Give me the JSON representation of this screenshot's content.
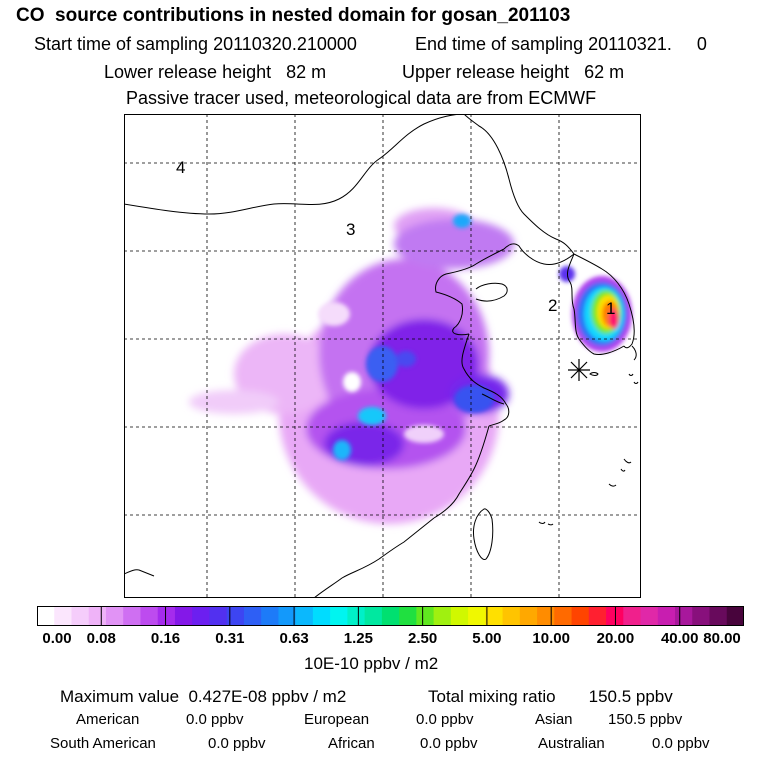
{
  "header": {
    "title": "CO  source contributions in nested domain for gosan_201103",
    "start_label": "Start time of sampling 20110320.210000",
    "end_label": "End time of sampling 20110321.     0",
    "lower_label": "Lower release height   82 m",
    "upper_label": "Upper release height   62 m",
    "note": "Passive tracer used, meteorological data are from ECMWF"
  },
  "chart_data": {
    "type": "heatmap",
    "title": "CO  source contributions in nested domain for gosan_201103",
    "region_labels": [
      "4",
      "3",
      "2",
      "1"
    ],
    "colorbar": {
      "ticks": [
        "0.00",
        "0.08",
        "0.16",
        "0.31",
        "0.63",
        "1.25",
        "2.50",
        "5.00",
        "10.00",
        "20.00",
        "40.00",
        "80.00"
      ],
      "units": "10E-10 ppbv / m2",
      "colors": [
        "#ffffff",
        "#fbe6fd",
        "#f5cdfb",
        "#efb3f8",
        "#e193f5",
        "#cf6ff2",
        "#bd4bef",
        "#a52bed",
        "#8418e8",
        "#6c1ff0",
        "#5230f0",
        "#3d45f2",
        "#2e5ff5",
        "#1d7bf8",
        "#1399fb",
        "#0bb8fd",
        "#00dcff",
        "#00f5f0",
        "#00f0c8",
        "#00e8a0",
        "#00e070",
        "#20e040",
        "#60e820",
        "#a0f010",
        "#d0f800",
        "#f0f800",
        "#ffe000",
        "#ffc400",
        "#ffa800",
        "#ff8c00",
        "#ff6a00",
        "#ff4400",
        "#ff2030",
        "#ff0060",
        "#f0208c",
        "#e028a8",
        "#c81eb0",
        "#a8189c",
        "#88107c",
        "#680a5c",
        "#48043c"
      ]
    },
    "max_value_label": "Maximum value  0.427E-08 ppbv / m2",
    "total_label": "Total mixing ratio       150.5 ppbv",
    "contributions": [
      {
        "name": "American",
        "value": "0.0 ppbv"
      },
      {
        "name": "European",
        "value": "0.0 ppbv"
      },
      {
        "name": "Asian",
        "value": "150.5 ppbv"
      },
      {
        "name": "South American",
        "value": "0.0 ppbv"
      },
      {
        "name": "African",
        "value": "0.0 ppbv"
      },
      {
        "name": "Australian",
        "value": "0.0 ppbv"
      }
    ]
  }
}
